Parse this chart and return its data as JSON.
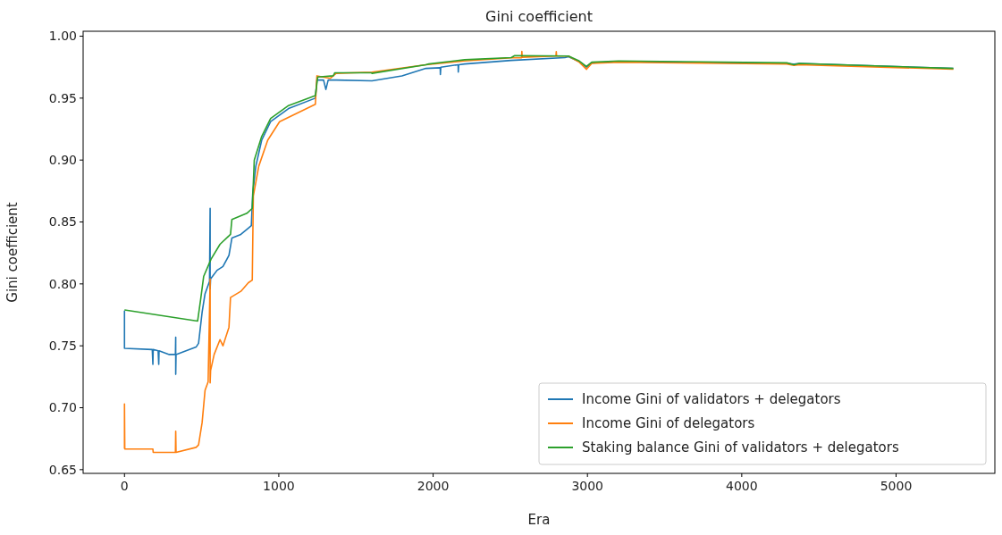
{
  "chart_data": {
    "type": "line",
    "title": "Gini coefficient",
    "xlabel": "Era",
    "ylabel": "Gini coefficient",
    "xlim": [
      -268,
      5640
    ],
    "xticks": [
      0,
      1000,
      2000,
      3000,
      4000,
      5000
    ],
    "ylim": [
      0.647,
      1.004
    ],
    "yticks": [
      {
        "value": 0.65,
        "label": "0.65"
      },
      {
        "value": 0.7,
        "label": "0.70"
      },
      {
        "value": 0.75,
        "label": "0.75"
      },
      {
        "value": 0.8,
        "label": "0.80"
      },
      {
        "value": 0.85,
        "label": "0.85"
      },
      {
        "value": 0.9,
        "label": "0.90"
      },
      {
        "value": 0.95,
        "label": "0.95"
      },
      {
        "value": 1.0,
        "label": "1.00"
      }
    ],
    "grid": false,
    "legend": "bottom right",
    "series": [
      {
        "name": "Income Gini of validators + delegators",
        "color": "#1f77b4",
        "x": [
          0,
          0,
          180,
          184,
          186,
          218,
          222,
          224,
          290,
          330,
          332,
          332,
          334,
          464,
          480,
          503,
          522,
          551,
          555,
          555,
          558,
          600,
          638,
          677,
          696,
          754,
          822,
          831,
          851,
          889,
          947,
          1063,
          1237,
          1247,
          1290,
          1305,
          1320,
          1372,
          1604,
          1798,
          1953,
          2046,
          2047,
          2050,
          2162,
          2163,
          2166,
          2204,
          2506,
          2854,
          2877,
          2947,
          2993,
          3028,
          3202,
          4292,
          4338,
          4373,
          5371
        ],
        "values": [
          0.7785,
          0.748,
          0.747,
          0.735,
          0.747,
          0.746,
          0.735,
          0.746,
          0.743,
          0.743,
          0.757,
          0.727,
          0.743,
          0.749,
          0.752,
          0.777,
          0.792,
          0.802,
          0.861,
          0.796,
          0.804,
          0.811,
          0.814,
          0.823,
          0.837,
          0.84,
          0.847,
          0.873,
          0.895,
          0.916,
          0.931,
          0.9416,
          0.95,
          0.9646,
          0.9646,
          0.957,
          0.9646,
          0.9646,
          0.964,
          0.968,
          0.974,
          0.9745,
          0.969,
          0.975,
          0.977,
          0.971,
          0.977,
          0.9776,
          0.9805,
          0.9827,
          0.9835,
          0.9795,
          0.975,
          0.9785,
          0.9795,
          0.978,
          0.9775,
          0.978,
          0.974
        ]
      },
      {
        "name": "Income Gini of delegators",
        "color": "#ff7f0e",
        "x": [
          0,
          0,
          2,
          184,
          186,
          330,
          332,
          334,
          464,
          480,
          503,
          522,
          542,
          555,
          555,
          558,
          581,
          619,
          638,
          677,
          687,
          754,
          803,
          828,
          835,
          870,
          928,
          1005,
          1237,
          1247,
          1334,
          1372,
          1604,
          1953,
          2204,
          2506,
          2573,
          2575,
          2577,
          2796,
          2798,
          2800,
          2877,
          2947,
          2994,
          3028,
          3202,
          4292,
          4338,
          4373,
          5371
        ],
        "values": [
          0.667,
          0.703,
          0.6667,
          0.6667,
          0.664,
          0.664,
          0.681,
          0.664,
          0.668,
          0.67,
          0.688,
          0.714,
          0.721,
          0.804,
          0.72,
          0.73,
          0.743,
          0.755,
          0.75,
          0.765,
          0.789,
          0.794,
          0.801,
          0.803,
          0.871,
          0.895,
          0.916,
          0.931,
          0.945,
          0.968,
          0.966,
          0.97,
          0.971,
          0.977,
          0.98,
          0.9825,
          0.9825,
          0.9878,
          0.983,
          0.984,
          0.9875,
          0.984,
          0.984,
          0.979,
          0.9733,
          0.978,
          0.979,
          0.9775,
          0.9765,
          0.977,
          0.9733
        ]
      },
      {
        "name": "Staking balance Gini of validators + delegators",
        "color": "#2ca02c",
        "x": [
          0,
          474,
          493,
          513,
          561,
          619,
          687,
          696,
          793,
          828,
          841,
          889,
          947,
          1063,
          1237,
          1252,
          1353,
          1363,
          1600,
          1604,
          1953,
          1972,
          2204,
          2506,
          2529,
          2877,
          2947,
          2993,
          3028,
          3202,
          4292,
          4338,
          4373,
          5371
        ],
        "values": [
          0.779,
          0.77,
          0.787,
          0.806,
          0.82,
          0.832,
          0.84,
          0.852,
          0.857,
          0.861,
          0.9,
          0.919,
          0.9336,
          0.944,
          0.952,
          0.967,
          0.968,
          0.9705,
          0.9705,
          0.97,
          0.977,
          0.9776,
          0.981,
          0.9827,
          0.9843,
          0.984,
          0.98,
          0.9756,
          0.979,
          0.98,
          0.9785,
          0.977,
          0.978,
          0.974
        ]
      }
    ]
  }
}
